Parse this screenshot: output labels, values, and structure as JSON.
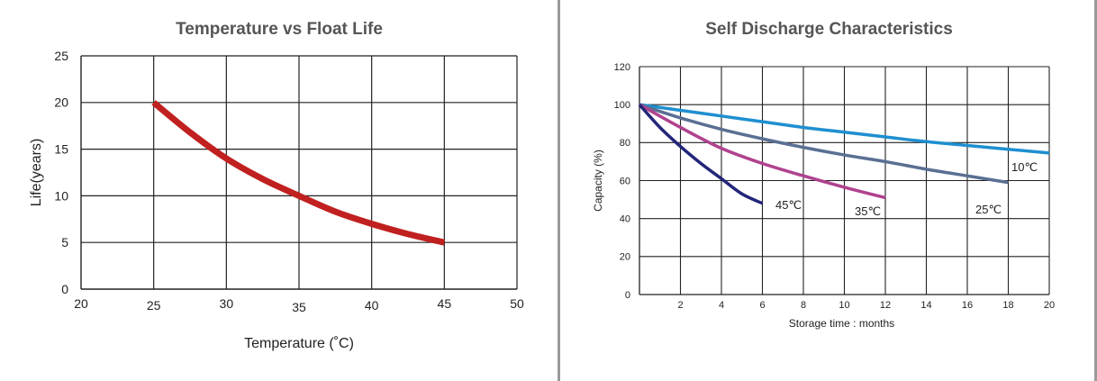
{
  "charts": {
    "left_title": "Temperature vs Float Life",
    "right_title": "Self Discharge Characteristics"
  },
  "chart_data": [
    {
      "type": "line",
      "title": "Temperature vs Float Life",
      "xlabel": "Temperature (˚C)",
      "ylabel": "Life(years)",
      "xlim": [
        20,
        50
      ],
      "ylim": [
        0,
        25
      ],
      "x_ticks": [
        "20",
        "25",
        "30",
        "35",
        "40",
        "45",
        "50"
      ],
      "y_ticks": [
        "0",
        "5",
        "10",
        "15",
        "20",
        "25"
      ],
      "grid": true,
      "series": [
        {
          "name": "Float Life",
          "color": "#c0201f",
          "x": [
            25,
            27.5,
            30,
            32.5,
            35,
            37.5,
            40,
            42.5,
            45
          ],
          "y": [
            20,
            16.8,
            14,
            11.8,
            10,
            8.3,
            7,
            5.9,
            5
          ]
        }
      ]
    },
    {
      "type": "line",
      "title": "Self Discharge Characteristics",
      "xlabel": "Storage time : months",
      "ylabel": "Capacity (%)",
      "xlim": [
        0,
        20
      ],
      "ylim": [
        0,
        120
      ],
      "x_ticks": [
        "2",
        "4",
        "6",
        "8",
        "10",
        "12",
        "14",
        "16",
        "18",
        "20"
      ],
      "y_ticks": [
        "0",
        "20",
        "40",
        "60",
        "80",
        "100",
        "120"
      ],
      "grid": true,
      "series": [
        {
          "name": "10℃",
          "color": "#1f8fd0",
          "x": [
            0,
            2,
            4,
            6,
            8,
            10,
            12,
            14,
            16,
            18,
            20
          ],
          "y": [
            100,
            97,
            94,
            91,
            88,
            85.5,
            83,
            80.5,
            78.5,
            76.5,
            74.5
          ]
        },
        {
          "name": "25℃",
          "color": "#5a6f93",
          "x": [
            0,
            2,
            4,
            6,
            8,
            10,
            12,
            14,
            16,
            18
          ],
          "y": [
            100,
            93,
            87,
            82,
            77.5,
            73.5,
            70,
            66,
            62.5,
            59
          ]
        },
        {
          "name": "35℃",
          "color": "#b0428e",
          "x": [
            0,
            2,
            4,
            6,
            8,
            10,
            12
          ],
          "y": [
            100,
            88,
            77,
            69,
            62.5,
            56.5,
            51
          ]
        },
        {
          "name": "45℃",
          "color": "#23257a",
          "x": [
            0,
            1,
            2,
            3,
            4,
            5,
            6
          ],
          "y": [
            100,
            88,
            78,
            69,
            61,
            53,
            48
          ]
        }
      ]
    }
  ]
}
